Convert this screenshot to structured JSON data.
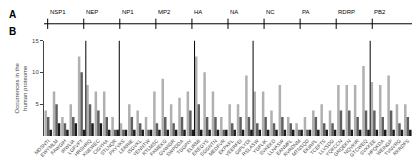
{
  "chart_data": {
    "type": "bar",
    "panels": [
      "A",
      "B"
    ],
    "annotations": [
      "NSP1",
      "NEP",
      "NP1",
      "MP2",
      "HA",
      "NA",
      "NC",
      "PA",
      "RDRP",
      "PB2"
    ],
    "ylabel": "Occurrences in the\nhuman proteome",
    "categories": [
      "MDSNTI",
      "EWYMLM",
      "FAWGIH",
      "IRWLIA",
      "LGFVFT",
      "HRSHRQ",
      "KNEWEC",
      "CIGYHA",
      "STLNQR",
      "PKYVKS",
      "LERRIE",
      "ISGVKL",
      "YENNTW",
      "RTLMSC",
      "FKMEKG",
      "GVWIGR",
      "SWPDDA",
      "TGGPIY",
      "ELIRMI",
      "EREGYS",
      "SGGNTN",
      "MEDFVR",
      "EKPKFL",
      "VEERFEI",
      "GIPLYDI",
      "RSLASW",
      "YGFLIK",
      "SVKEKD",
      "LLNASW",
      "EANMFL",
      "RVRDNM",
      "MTNSQD",
      "EKIRPL",
      "TCEFTS",
      "LLVSDG",
      "YQKCCN",
      "GRQEKN",
      "NQVKIR",
      "GTCWEQ",
      "SVKKEE",
      "HFQKDA",
      "WEINGP",
      "TVNVRG",
      "RKRDFS"
    ],
    "series": [
      {
        "color": "#b0b0b0",
        "values": [
          4,
          7,
          3,
          5,
          12.5,
          8,
          7,
          7,
          3,
          2,
          5,
          4,
          3,
          7,
          9,
          5,
          6,
          7,
          12.5,
          10,
          7,
          3,
          5,
          5,
          9.5,
          7,
          7,
          4,
          8,
          3,
          2,
          3,
          4,
          5,
          4,
          8,
          8,
          8,
          11,
          8.5,
          8,
          9.5,
          5,
          5
        ]
      },
      {
        "color": "#606060",
        "values": [
          3,
          5,
          2,
          3,
          10,
          5,
          4,
          3,
          1,
          1,
          3,
          2,
          1,
          2,
          3,
          2,
          3,
          4,
          5,
          3,
          3,
          1,
          2,
          3,
          3,
          2,
          3,
          2,
          3,
          2,
          1,
          1,
          3,
          2,
          2,
          4,
          4,
          3,
          4,
          4,
          3,
          4,
          2,
          3
        ]
      },
      {
        "color": "#1a1a1a",
        "values": [
          1,
          2,
          1,
          2,
          1,
          2,
          2,
          1,
          1,
          1,
          1,
          1,
          1,
          1,
          1,
          1,
          1,
          1,
          1,
          1,
          1,
          1,
          1,
          1,
          1,
          1,
          1,
          1,
          1,
          1,
          1,
          1,
          1,
          1,
          1,
          1,
          1,
          1,
          1,
          1,
          1,
          1,
          1,
          1
        ]
      }
    ],
    "dividers": [
      4.5,
      8.5,
      17.5,
      24.5,
      38.5
    ],
    "ylim": [
      0,
      15
    ],
    "yticks": [
      5,
      10,
      15
    ],
    "grid": false
  }
}
